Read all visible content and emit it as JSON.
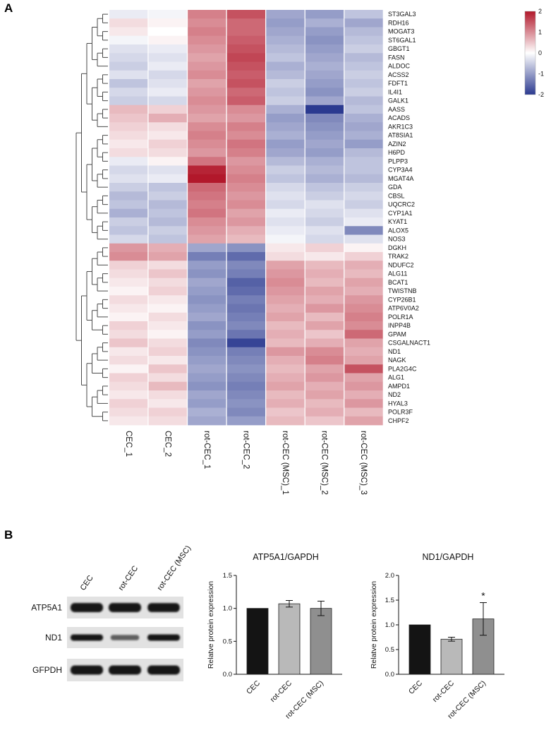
{
  "figure": {
    "panel_a_label": "A",
    "panel_b_label": "B"
  },
  "chart_data": [
    {
      "type": "heatmap",
      "columns": [
        "CEC_1",
        "CEC_2",
        "rot-CEC_1",
        "rot-CEC_2",
        "rot-CEC (MSC)_1",
        "rot-CEC (MSC)_2",
        "rot-CEC (MSC)_3"
      ],
      "genes": [
        "ST3GAL3",
        "RDH16",
        "MOGAT3",
        "ST6GAL1",
        "GBGT1",
        "FASN",
        "ALDOC",
        "ACSS2",
        "FDFT1",
        "IL4I1",
        "GALK1",
        "AASS",
        "ACADS",
        "AKR1C3",
        "AT8SIA1",
        "AZIN2",
        "H6PD",
        "PLPP3",
        "CYP3A4",
        "MGAT4A",
        "GDA",
        "CBSL",
        "UQCRC2",
        "CYP1A1",
        "KYAT1",
        "ALOX5",
        "NOS3",
        "DGKH",
        "TRAK2",
        "NDUFC2",
        "ALG11",
        "BCAT1",
        "TWISTNB",
        "CYP26B1",
        "ATP6V0A2",
        "POLR1A",
        "INPP4B",
        "GPAM",
        "CSGALNACT1",
        "ND1",
        "NAGK",
        "PLA2G4C",
        "ALG1",
        "AMPD1",
        "ND2",
        "HYAL3",
        "POLR3F",
        "CHPF2"
      ],
      "values": [
        [
          -0.2,
          -0.1,
          1.1,
          1.5,
          -0.9,
          -1.0,
          -0.6
        ],
        [
          0.3,
          0.1,
          1.0,
          1.3,
          -1.0,
          -0.8,
          -0.9
        ],
        [
          0.2,
          0.0,
          1.1,
          1.3,
          -0.9,
          -1.0,
          -0.7
        ],
        [
          -0.1,
          0.1,
          1.0,
          1.4,
          -0.8,
          -1.1,
          -0.6
        ],
        [
          -0.3,
          -0.2,
          0.9,
          1.5,
          -0.7,
          -1.0,
          -0.5
        ],
        [
          -0.4,
          -0.3,
          0.8,
          1.6,
          -0.6,
          -0.9,
          -0.7
        ],
        [
          -0.5,
          -0.2,
          0.9,
          1.5,
          -0.8,
          -0.8,
          -0.6
        ],
        [
          -0.3,
          -0.4,
          1.0,
          1.4,
          -0.7,
          -0.9,
          -0.5
        ],
        [
          -0.6,
          -0.3,
          0.8,
          1.5,
          -0.5,
          -1.0,
          -0.6
        ],
        [
          -0.4,
          -0.2,
          0.9,
          1.3,
          -0.6,
          -1.1,
          -0.5
        ],
        [
          -0.5,
          -0.4,
          1.0,
          1.4,
          -0.5,
          -0.9,
          -0.7
        ],
        [
          0.6,
          0.4,
          0.9,
          1.0,
          -0.8,
          -2.0,
          -0.6
        ],
        [
          0.5,
          0.7,
          0.8,
          0.9,
          -1.0,
          -1.2,
          -0.8
        ],
        [
          0.4,
          0.3,
          1.0,
          1.1,
          -0.9,
          -1.1,
          -0.9
        ],
        [
          0.3,
          0.2,
          1.1,
          1.0,
          -0.8,
          -1.0,
          -0.8
        ],
        [
          0.2,
          0.4,
          1.0,
          1.2,
          -1.0,
          -0.9,
          -1.0
        ],
        [
          0.3,
          0.3,
          0.9,
          1.1,
          -0.9,
          -1.0,
          -0.7
        ],
        [
          -0.2,
          0.1,
          1.2,
          0.9,
          -0.7,
          -0.8,
          -0.6
        ],
        [
          -0.4,
          -0.3,
          1.9,
          1.0,
          -0.5,
          -0.7,
          -0.6
        ],
        [
          -0.3,
          -0.2,
          2.0,
          1.1,
          -0.6,
          -0.8,
          -0.7
        ],
        [
          -0.5,
          -0.6,
          1.3,
          1.0,
          -0.4,
          -0.6,
          -0.5
        ],
        [
          -0.7,
          -0.5,
          1.2,
          0.9,
          -0.3,
          -0.5,
          -0.4
        ],
        [
          -0.6,
          -0.7,
          1.1,
          1.0,
          -0.4,
          -0.3,
          -0.5
        ],
        [
          -0.8,
          -0.6,
          1.2,
          0.8,
          -0.2,
          -0.4,
          -0.3
        ],
        [
          -0.5,
          -0.7,
          1.0,
          0.9,
          -0.3,
          -0.5,
          -0.2
        ],
        [
          -0.6,
          -0.5,
          0.9,
          0.7,
          -0.2,
          -0.3,
          -1.2
        ],
        [
          -0.4,
          -0.6,
          0.8,
          0.6,
          -0.1,
          -0.4,
          -0.3
        ],
        [
          0.9,
          0.7,
          -0.9,
          -1.1,
          0.2,
          0.4,
          0.1
        ],
        [
          1.0,
          0.8,
          -1.3,
          -1.5,
          0.3,
          0.2,
          0.4
        ],
        [
          0.4,
          0.3,
          -1.0,
          -1.2,
          0.8,
          0.6,
          0.7
        ],
        [
          0.3,
          0.5,
          -1.1,
          -1.3,
          0.9,
          0.7,
          0.6
        ],
        [
          0.2,
          0.3,
          -0.9,
          -1.6,
          1.0,
          0.6,
          0.8
        ],
        [
          0.1,
          0.4,
          -1.0,
          -1.5,
          0.9,
          0.8,
          0.7
        ],
        [
          0.3,
          0.2,
          -1.1,
          -1.3,
          0.8,
          0.7,
          0.9
        ],
        [
          0.2,
          0.1,
          -1.0,
          -1.4,
          0.7,
          0.9,
          1.0
        ],
        [
          0.1,
          0.3,
          -0.9,
          -1.3,
          0.8,
          0.6,
          1.1
        ],
        [
          0.4,
          0.2,
          -1.1,
          -1.2,
          0.6,
          0.8,
          1.0
        ],
        [
          0.3,
          0.1,
          -1.0,
          -1.4,
          0.7,
          0.5,
          1.3
        ],
        [
          0.5,
          0.3,
          -1.2,
          -1.9,
          0.6,
          0.7,
          0.8
        ],
        [
          0.2,
          0.4,
          -1.1,
          -1.3,
          0.9,
          1.0,
          0.7
        ],
        [
          0.3,
          0.2,
          -1.0,
          -1.2,
          0.7,
          1.1,
          0.8
        ],
        [
          0.1,
          0.5,
          -0.9,
          -1.1,
          0.6,
          0.8,
          1.5
        ],
        [
          0.4,
          0.3,
          -1.0,
          -1.2,
          0.7,
          0.9,
          0.8
        ],
        [
          0.3,
          0.6,
          -1.1,
          -1.3,
          0.8,
          0.7,
          0.9
        ],
        [
          0.2,
          0.3,
          -0.9,
          -1.2,
          0.6,
          0.8,
          0.7
        ],
        [
          0.4,
          0.2,
          -1.0,
          -1.1,
          0.7,
          0.6,
          0.9
        ],
        [
          0.3,
          0.4,
          -0.8,
          -1.2,
          0.5,
          0.7,
          0.6
        ],
        [
          0.2,
          0.3,
          -0.9,
          -1.0,
          0.6,
          0.5,
          0.8
        ]
      ],
      "vmin": -2,
      "vmax": 2,
      "colorbar_ticks": [
        2,
        1,
        0,
        -1,
        -2
      ],
      "color_positive": "#b2182b",
      "color_negative": "#2b3a90"
    },
    {
      "type": "bar",
      "title": "ATP5A1/GAPDH",
      "ylabel": "Relatve protein expression",
      "categories": [
        "CEC",
        "rot-CEC",
        "rot-CEC (MSC)"
      ],
      "values": [
        1.0,
        1.07,
        1.0
      ],
      "errors": [
        0,
        0.05,
        0.11
      ],
      "bar_colors": [
        "#141414",
        "#b9b9b9",
        "#8f8f8f"
      ],
      "ylim": [
        0,
        1.5
      ],
      "yticks": [
        0,
        0.5,
        1.0,
        1.5
      ],
      "significance": [
        "",
        "",
        ""
      ]
    },
    {
      "type": "bar",
      "title": "ND1/GAPDH",
      "ylabel": "Relatve protein expression",
      "categories": [
        "CEC",
        "rot-CEC",
        "rot-CEC (MSC)"
      ],
      "values": [
        1.0,
        0.71,
        1.12
      ],
      "errors": [
        0,
        0.04,
        0.33
      ],
      "bar_colors": [
        "#141414",
        "#b9b9b9",
        "#8f8f8f"
      ],
      "ylim": [
        0,
        2.0
      ],
      "yticks": [
        0,
        0.5,
        1.0,
        1.5,
        2.0
      ],
      "significance": [
        "",
        "",
        "*"
      ]
    }
  ],
  "western_blot": {
    "lane_labels": [
      "CEC",
      "rot-CEC",
      "rot-CEC (MSC)"
    ],
    "rows": [
      {
        "label": "ATP5A1",
        "band_intensities": [
          1.0,
          1.0,
          0.95
        ]
      },
      {
        "label": "ND1",
        "band_intensities": [
          1.0,
          0.45,
          1.0
        ]
      },
      {
        "label": "GFPDH",
        "band_intensities": [
          1.0,
          1.0,
          1.0
        ]
      }
    ]
  }
}
